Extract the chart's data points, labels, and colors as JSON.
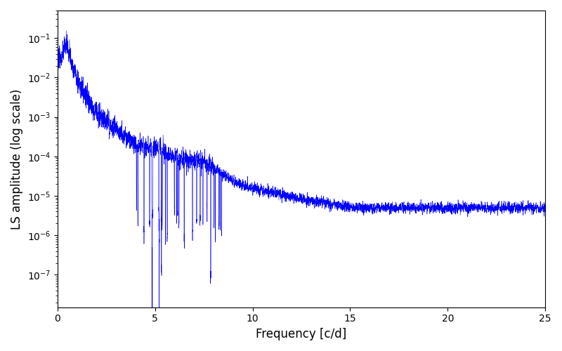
{
  "xlabel": "Frequency [c/d]",
  "ylabel": "LS amplitude (log scale)",
  "line_color": "#0000ff",
  "xlim": [
    0,
    25
  ],
  "ylim": [
    1.5e-08,
    0.5
  ],
  "figsize": [
    8.0,
    5.0
  ],
  "dpi": 100,
  "n_points": 8000,
  "xmin": 0.0,
  "xmax": 25.0,
  "linewidth": 0.4,
  "yticks": [
    1e-07,
    1e-06,
    1e-05,
    0.0001,
    0.001,
    0.01,
    0.1
  ],
  "xticks": [
    0,
    5,
    10,
    15,
    20,
    25
  ]
}
